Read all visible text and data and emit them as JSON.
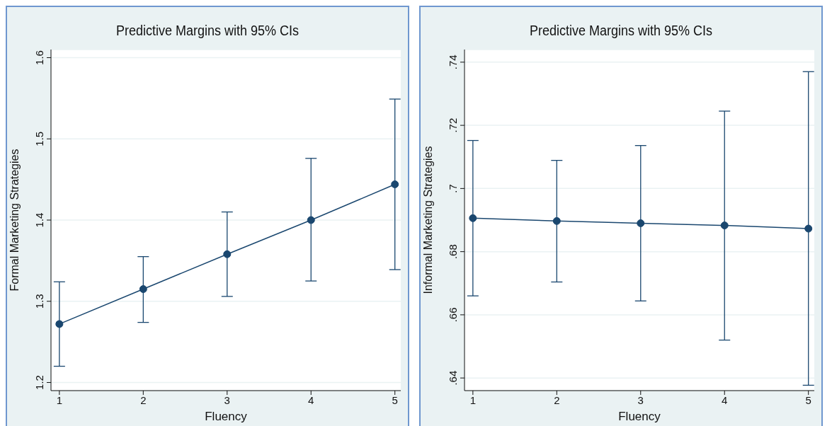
{
  "chart_data": [
    {
      "type": "line",
      "title": "Predictive Margins with 95% CIs",
      "xlabel": "Fluency",
      "ylabel": "Formal Marketing Strategies",
      "x": [
        1,
        2,
        3,
        4,
        5
      ],
      "xlim": [
        0.9,
        5.07
      ],
      "xticks": [
        1,
        2,
        3,
        4,
        5
      ],
      "ylim": [
        1.19,
        1.61
      ],
      "yticks": [
        1.2,
        1.3,
        1.4,
        1.5,
        1.6
      ],
      "grid": "y",
      "marker": "circle",
      "line_style": "solid",
      "series": [
        {
          "color": "#1a476f",
          "values": [
            1.272,
            1.315,
            1.358,
            1.4,
            1.444
          ],
          "errors": [
            [
              1.22,
              1.324
            ],
            [
              1.274,
              1.355
            ],
            [
              1.306,
              1.41
            ],
            [
              1.325,
              1.476
            ],
            [
              1.339,
              1.549
            ]
          ]
        }
      ]
    },
    {
      "type": "line",
      "title": "Predictive Margins with 95% CIs",
      "xlabel": "Fluency",
      "ylabel": "Informal Marketing Strategies",
      "x": [
        1,
        2,
        3,
        4,
        5
      ],
      "xlim": [
        0.9,
        5.07
      ],
      "xticks": [
        1,
        2,
        3,
        4,
        5
      ],
      "ylim": [
        0.636,
        0.744
      ],
      "yticks": [
        {
          "value": 0.64,
          "label": ".64"
        },
        {
          "value": 0.66,
          "label": ".66"
        },
        {
          "value": 0.68,
          "label": ".68"
        },
        {
          "value": 0.7,
          "label": ".7"
        },
        {
          "value": 0.72,
          "label": ".72"
        },
        {
          "value": 0.74,
          "label": ".74"
        }
      ],
      "grid": "y",
      "marker": "circle",
      "line_style": "solid",
      "series": [
        {
          "color": "#1a476f",
          "values": [
            0.6906,
            0.6897,
            0.689,
            0.6883,
            0.6873
          ],
          "errors": [
            [
              0.666,
              0.7152
            ],
            [
              0.6704,
              0.7089
            ],
            [
              0.6644,
              0.7136
            ],
            [
              0.652,
              0.7245
            ],
            [
              0.6377,
              0.737
            ]
          ]
        }
      ]
    }
  ]
}
